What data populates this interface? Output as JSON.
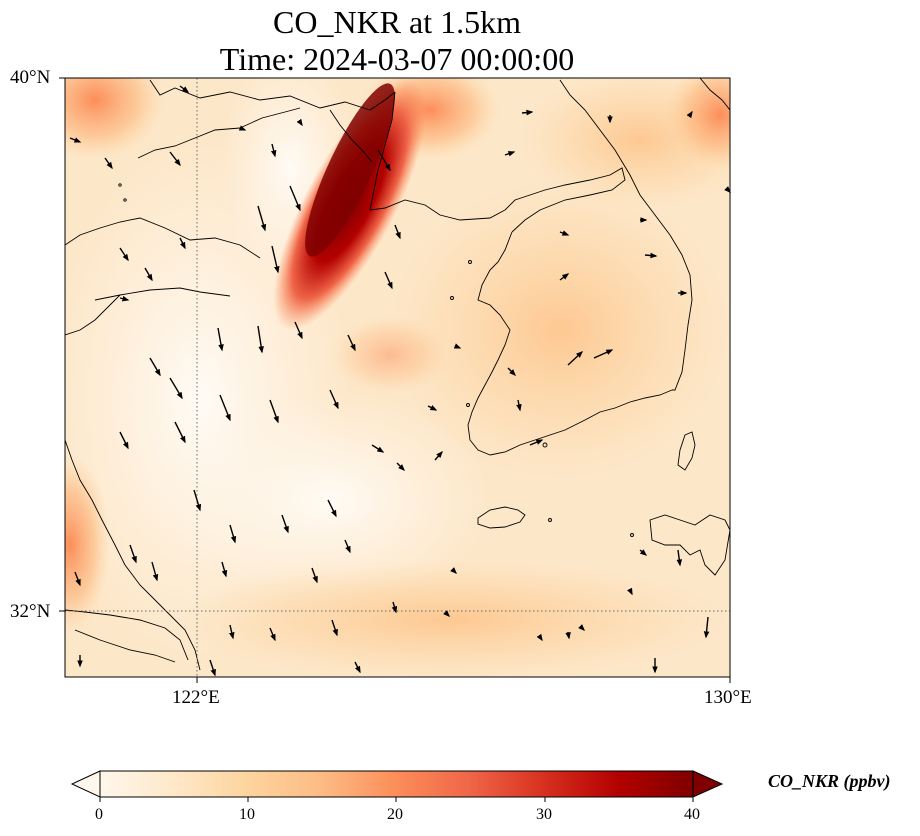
{
  "title_line1": "CO_NKR at 1.5km",
  "title_line2": "Time: 2024-03-07 00:00:00",
  "axes": {
    "lat_labels": [
      "40°N",
      "32°N"
    ],
    "lon_labels": [
      "122°E",
      "130°E"
    ],
    "lon_range": [
      120,
      130
    ],
    "lat_range": [
      31,
      40
    ],
    "gridlines": "dotted at 122°E and 32°N"
  },
  "colorbar": {
    "label": "CO_NKR (ppbv)",
    "ticks": [
      "0",
      "10",
      "20",
      "30",
      "40"
    ],
    "range": [
      0,
      40
    ],
    "colormap": "OrRd",
    "extend": "both",
    "colors": [
      "#fff7ec",
      "#fee8c8",
      "#fdd49e",
      "#fdbb84",
      "#fc8d59",
      "#ef6548",
      "#d7301f",
      "#b30000",
      "#7f0000"
    ]
  },
  "plume": {
    "location": "Bohai Sea / northern Yellow Sea",
    "peak_value_ppbv": 40
  },
  "wind_vectors": "black arrows, predominantly northerly to north-northwesterly over the Yellow Sea"
}
